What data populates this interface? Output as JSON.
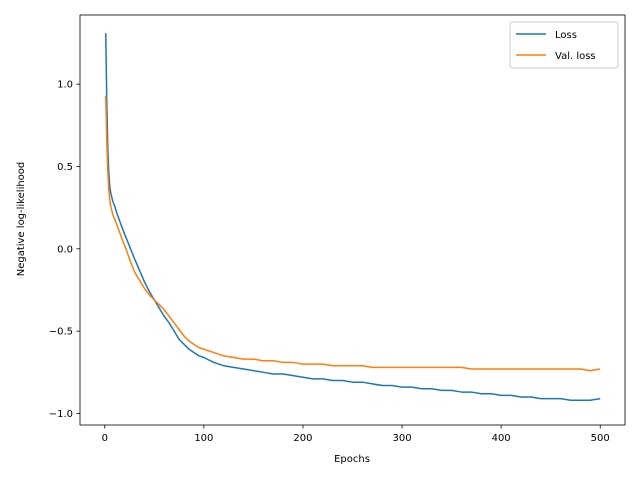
{
  "chart_data": {
    "type": "line",
    "title": "",
    "xlabel": "Epochs",
    "ylabel": "Negative log-likelihood",
    "xlim": [
      -25,
      525
    ],
    "ylim": [
      -1.07,
      1.42
    ],
    "xticks": [
      0,
      100,
      200,
      300,
      400,
      500
    ],
    "xtick_labels": [
      "0",
      "100",
      "200",
      "300",
      "400",
      "500"
    ],
    "yticks": [
      -1.0,
      -0.5,
      0.0,
      0.5,
      1.0
    ],
    "ytick_labels": [
      "−1.0",
      "−0.5",
      "0.0",
      "0.5",
      "1.0"
    ],
    "grid": false,
    "legend_position": "top-right",
    "series": [
      {
        "name": "Loss",
        "color": "#1f77b4",
        "x": [
          1,
          2,
          3,
          4,
          5,
          6,
          8,
          10,
          12,
          15,
          18,
          22,
          26,
          30,
          35,
          40,
          45,
          50,
          55,
          60,
          65,
          70,
          75,
          80,
          85,
          90,
          95,
          100,
          110,
          120,
          130,
          140,
          150,
          160,
          170,
          180,
          190,
          200,
          210,
          220,
          230,
          240,
          250,
          260,
          270,
          280,
          290,
          300,
          310,
          320,
          330,
          340,
          350,
          360,
          370,
          380,
          390,
          400,
          410,
          420,
          430,
          440,
          450,
          460,
          470,
          480,
          490,
          500
        ],
        "values": [
          1.31,
          0.9,
          0.62,
          0.47,
          0.38,
          0.34,
          0.29,
          0.26,
          0.22,
          0.17,
          0.12,
          0.06,
          0.0,
          -0.06,
          -0.13,
          -0.2,
          -0.26,
          -0.31,
          -0.36,
          -0.41,
          -0.45,
          -0.5,
          -0.55,
          -0.58,
          -0.61,
          -0.63,
          -0.65,
          -0.66,
          -0.69,
          -0.71,
          -0.72,
          -0.73,
          -0.74,
          -0.75,
          -0.76,
          -0.76,
          -0.77,
          -0.78,
          -0.79,
          -0.79,
          -0.8,
          -0.8,
          -0.81,
          -0.81,
          -0.82,
          -0.83,
          -0.83,
          -0.84,
          -0.84,
          -0.85,
          -0.85,
          -0.86,
          -0.86,
          -0.87,
          -0.87,
          -0.88,
          -0.88,
          -0.89,
          -0.89,
          -0.9,
          -0.9,
          -0.91,
          -0.91,
          -0.91,
          -0.92,
          -0.92,
          -0.92,
          -0.91
        ]
      },
      {
        "name": "Val. loss",
        "color": "#ff7f0e",
        "x": [
          1,
          2,
          3,
          4,
          5,
          6,
          8,
          10,
          12,
          15,
          18,
          22,
          26,
          30,
          35,
          40,
          45,
          50,
          55,
          60,
          65,
          70,
          75,
          80,
          85,
          90,
          95,
          100,
          110,
          120,
          130,
          140,
          150,
          160,
          170,
          180,
          190,
          200,
          210,
          220,
          230,
          240,
          250,
          260,
          270,
          280,
          290,
          300,
          310,
          320,
          330,
          340,
          350,
          360,
          370,
          380,
          390,
          400,
          410,
          420,
          430,
          440,
          450,
          460,
          470,
          480,
          490,
          500
        ],
        "values": [
          0.93,
          0.66,
          0.48,
          0.36,
          0.3,
          0.26,
          0.21,
          0.18,
          0.15,
          0.1,
          0.05,
          -0.01,
          -0.08,
          -0.14,
          -0.19,
          -0.24,
          -0.28,
          -0.31,
          -0.34,
          -0.37,
          -0.41,
          -0.45,
          -0.49,
          -0.53,
          -0.56,
          -0.58,
          -0.6,
          -0.61,
          -0.63,
          -0.65,
          -0.66,
          -0.67,
          -0.67,
          -0.68,
          -0.68,
          -0.69,
          -0.69,
          -0.7,
          -0.7,
          -0.7,
          -0.71,
          -0.71,
          -0.71,
          -0.71,
          -0.72,
          -0.72,
          -0.72,
          -0.72,
          -0.72,
          -0.72,
          -0.72,
          -0.72,
          -0.72,
          -0.72,
          -0.73,
          -0.73,
          -0.73,
          -0.73,
          -0.73,
          -0.73,
          -0.73,
          -0.73,
          -0.73,
          -0.73,
          -0.73,
          -0.73,
          -0.74,
          -0.73
        ]
      }
    ]
  }
}
